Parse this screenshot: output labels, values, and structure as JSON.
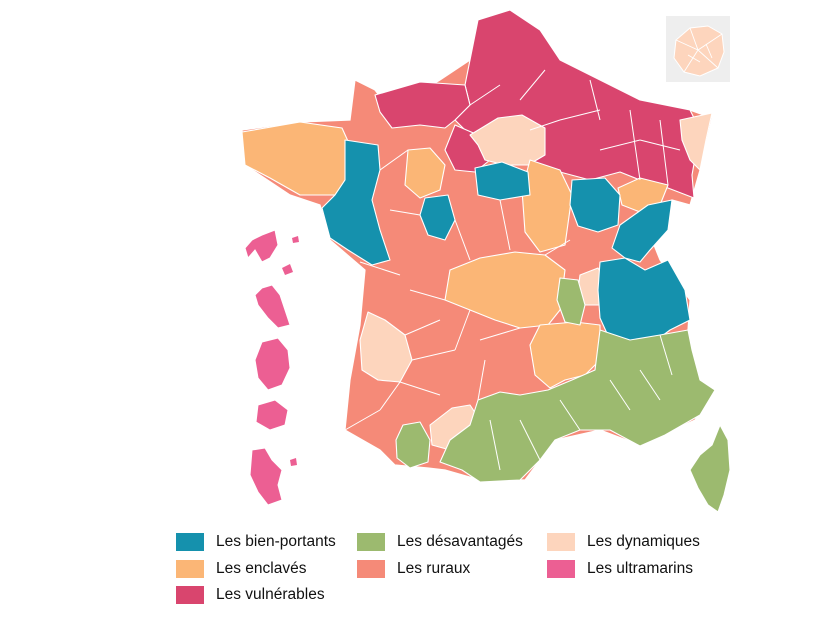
{
  "colors": {
    "bien_portants": "#1591ad",
    "enclaves": "#fbb676",
    "vulnerables": "#d9456e",
    "desavantages": "#9cba6f",
    "ruraux": "#f58a78",
    "dynamiques": "#fdd5bd",
    "ultramarins": "#ec5f93",
    "inset_bg": "#eeeeee"
  },
  "legend": [
    {
      "label": "Les bien-portants",
      "color": "#1591ad"
    },
    {
      "label": "Les enclavés",
      "color": "#fbb676"
    },
    {
      "label": "Les vulnérables",
      "color": "#d9456e"
    },
    {
      "label": "Les désavantagés",
      "color": "#9cba6f"
    },
    {
      "label": "Les ruraux",
      "color": "#f58a78"
    },
    {
      "label": "Les dynamiques",
      "color": "#fdd5bd"
    },
    {
      "label": "Les ultramarins",
      "color": "#ec5f93"
    }
  ]
}
